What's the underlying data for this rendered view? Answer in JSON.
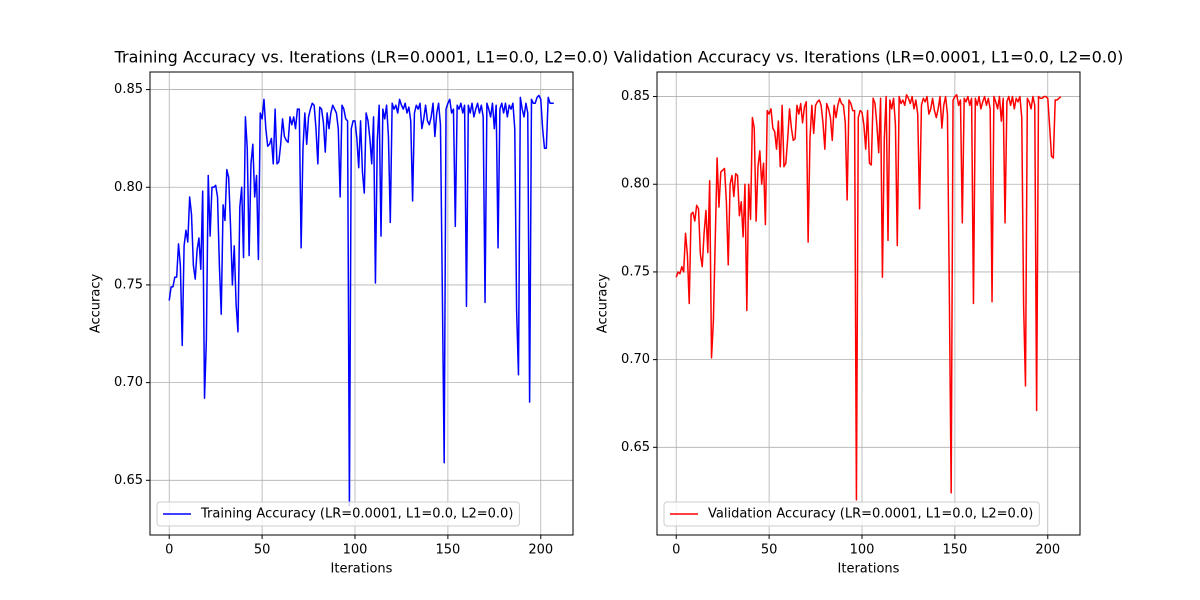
{
  "chart_data": [
    {
      "type": "line",
      "title": "Training Accuracy vs. Iterations (LR=0.0001, L1=0.0, L2=0.0)",
      "xlabel": "Iterations",
      "ylabel": "Accuracy",
      "grid": true,
      "legend": "lower left",
      "xlim": [
        -10.35,
        217.35
      ],
      "xticks": [
        0,
        50,
        100,
        150,
        200
      ],
      "ylim": [
        0.622,
        0.859
      ],
      "yticks": [
        0.65,
        {
          "value": 0.7,
          "label": "0.70"
        },
        0.75,
        {
          "value": 0.8,
          "label": "0.80"
        },
        0.85
      ],
      "x": [
        0,
        1,
        2,
        3,
        4,
        5,
        6,
        7,
        8,
        9,
        10,
        11,
        12,
        13,
        14,
        15,
        16,
        17,
        18,
        19,
        20,
        21,
        22,
        23,
        24,
        25,
        26,
        27,
        28,
        29,
        30,
        31,
        32,
        33,
        34,
        35,
        36,
        37,
        38,
        39,
        40,
        41,
        42,
        43,
        44,
        45,
        46,
        47,
        48,
        49,
        50,
        51,
        52,
        53,
        54,
        55,
        56,
        57,
        58,
        59,
        60,
        61,
        62,
        63,
        64,
        65,
        66,
        67,
        68,
        69,
        70,
        71,
        72,
        73,
        74,
        75,
        76,
        77,
        78,
        79,
        80,
        81,
        82,
        83,
        84,
        85,
        86,
        87,
        88,
        89,
        90,
        91,
        92,
        93,
        94,
        95,
        96,
        97,
        98,
        99,
        100,
        101,
        102,
        103,
        104,
        105,
        106,
        107,
        108,
        109,
        110,
        111,
        112,
        113,
        114,
        115,
        116,
        117,
        118,
        119,
        120,
        121,
        122,
        123,
        124,
        125,
        126,
        127,
        128,
        129,
        130,
        131,
        132,
        133,
        134,
        135,
        136,
        137,
        138,
        139,
        140,
        141,
        142,
        143,
        144,
        145,
        146,
        147,
        148,
        149,
        150,
        151,
        152,
        153,
        154,
        155,
        156,
        157,
        158,
        159,
        160,
        161,
        162,
        163,
        164,
        165,
        166,
        167,
        168,
        169,
        170,
        171,
        172,
        173,
        174,
        175,
        176,
        177,
        178,
        179,
        180,
        181,
        182,
        183,
        184,
        185,
        186,
        187,
        188,
        189,
        190,
        191,
        192,
        193,
        194,
        195,
        196,
        197,
        198,
        199,
        200,
        201,
        202,
        203,
        204,
        205,
        206,
        207
      ],
      "series": [
        {
          "name": "Training Accuracy (LR=0.0001, L1=0.0, L2=0.0)",
          "color": "#0000ff",
          "values": [
            0.742,
            0.749,
            0.749,
            0.754,
            0.754,
            0.771,
            0.76,
            0.719,
            0.77,
            0.778,
            0.772,
            0.795,
            0.786,
            0.76,
            0.753,
            0.768,
            0.774,
            0.758,
            0.798,
            0.692,
            0.722,
            0.806,
            0.775,
            0.8,
            0.8,
            0.801,
            0.795,
            0.76,
            0.735,
            0.791,
            0.783,
            0.809,
            0.805,
            0.78,
            0.75,
            0.77,
            0.74,
            0.726,
            0.79,
            0.8,
            0.764,
            0.836,
            0.82,
            0.765,
            0.812,
            0.822,
            0.795,
            0.806,
            0.763,
            0.838,
            0.835,
            0.845,
            0.83,
            0.821,
            0.822,
            0.825,
            0.812,
            0.84,
            0.812,
            0.813,
            0.822,
            0.835,
            0.826,
            0.824,
            0.823,
            0.836,
            0.832,
            0.836,
            0.83,
            0.84,
            0.84,
            0.769,
            0.82,
            0.838,
            0.822,
            0.836,
            0.84,
            0.843,
            0.842,
            0.83,
            0.812,
            0.841,
            0.84,
            0.833,
            0.818,
            0.838,
            0.83,
            0.838,
            0.842,
            0.84,
            0.838,
            0.83,
            0.795,
            0.842,
            0.84,
            0.835,
            0.834,
            0.637,
            0.83,
            0.834,
            0.834,
            0.825,
            0.81,
            0.834,
            0.808,
            0.797,
            0.838,
            0.834,
            0.825,
            0.812,
            0.836,
            0.751,
            0.824,
            0.842,
            0.775,
            0.84,
            0.835,
            0.842,
            0.826,
            0.782,
            0.843,
            0.84,
            0.842,
            0.838,
            0.845,
            0.842,
            0.84,
            0.843,
            0.838,
            0.841,
            0.834,
            0.793,
            0.838,
            0.842,
            0.84,
            0.843,
            0.83,
            0.835,
            0.842,
            0.834,
            0.832,
            0.836,
            0.843,
            0.826,
            0.838,
            0.843,
            0.832,
            0.748,
            0.659,
            0.84,
            0.843,
            0.845,
            0.838,
            0.84,
            0.78,
            0.842,
            0.84,
            0.843,
            0.838,
            0.842,
            0.739,
            0.842,
            0.838,
            0.843,
            0.836,
            0.84,
            0.843,
            0.838,
            0.842,
            0.836,
            0.741,
            0.843,
            0.84,
            0.836,
            0.843,
            0.83,
            0.842,
            0.769,
            0.84,
            0.843,
            0.838,
            0.843,
            0.836,
            0.842,
            0.84,
            0.843,
            0.83,
            0.737,
            0.704,
            0.846,
            0.84,
            0.836,
            0.843,
            0.838,
            0.69,
            0.845,
            0.843,
            0.843,
            0.846,
            0.847,
            0.845,
            0.83,
            0.82,
            0.82,
            0.846,
            0.843,
            0.843,
            0.843
          ]
        }
      ]
    },
    {
      "type": "line",
      "title": "Validation Accuracy vs. Iterations (LR=0.0001, L1=0.0, L2=0.0)",
      "xlabel": "Iterations",
      "ylabel": "Accuracy",
      "grid": true,
      "legend": "lower left",
      "xlim": [
        -10.35,
        217.35
      ],
      "xticks": [
        0,
        50,
        100,
        150,
        200
      ],
      "ylim": [
        0.6,
        0.864
      ],
      "yticks": [
        0.65,
        {
          "value": 0.7,
          "label": "0.70"
        },
        0.75,
        {
          "value": 0.8,
          "label": "0.80"
        },
        0.85
      ],
      "x": [
        0,
        1,
        2,
        3,
        4,
        5,
        6,
        7,
        8,
        9,
        10,
        11,
        12,
        13,
        14,
        15,
        16,
        17,
        18,
        19,
        20,
        21,
        22,
        23,
        24,
        25,
        26,
        27,
        28,
        29,
        30,
        31,
        32,
        33,
        34,
        35,
        36,
        37,
        38,
        39,
        40,
        41,
        42,
        43,
        44,
        45,
        46,
        47,
        48,
        49,
        50,
        51,
        52,
        53,
        54,
        55,
        56,
        57,
        58,
        59,
        60,
        61,
        62,
        63,
        64,
        65,
        66,
        67,
        68,
        69,
        70,
        71,
        72,
        73,
        74,
        75,
        76,
        77,
        78,
        79,
        80,
        81,
        82,
        83,
        84,
        85,
        86,
        87,
        88,
        89,
        90,
        91,
        92,
        93,
        94,
        95,
        96,
        97,
        98,
        99,
        100,
        101,
        102,
        103,
        104,
        105,
        106,
        107,
        108,
        109,
        110,
        111,
        112,
        113,
        114,
        115,
        116,
        117,
        118,
        119,
        120,
        121,
        122,
        123,
        124,
        125,
        126,
        127,
        128,
        129,
        130,
        131,
        132,
        133,
        134,
        135,
        136,
        137,
        138,
        139,
        140,
        141,
        142,
        143,
        144,
        145,
        146,
        147,
        148,
        149,
        150,
        151,
        152,
        153,
        154,
        155,
        156,
        157,
        158,
        159,
        160,
        161,
        162,
        163,
        164,
        165,
        166,
        167,
        168,
        169,
        170,
        171,
        172,
        173,
        174,
        175,
        176,
        177,
        178,
        179,
        180,
        181,
        182,
        183,
        184,
        185,
        186,
        187,
        188,
        189,
        190,
        191,
        192,
        193,
        194,
        195,
        196,
        197,
        198,
        199,
        200,
        201,
        202,
        203,
        204,
        205,
        206,
        207
      ],
      "series": [
        {
          "name": "Validation Accuracy (LR=0.0001, L1=0.0, L2=0.0)",
          "color": "#ff0000",
          "values": [
            0.747,
            0.75,
            0.749,
            0.753,
            0.75,
            0.772,
            0.76,
            0.732,
            0.783,
            0.784,
            0.779,
            0.788,
            0.786,
            0.76,
            0.753,
            0.772,
            0.785,
            0.761,
            0.802,
            0.701,
            0.722,
            0.768,
            0.815,
            0.787,
            0.807,
            0.808,
            0.809,
            0.79,
            0.754,
            0.8,
            0.805,
            0.793,
            0.806,
            0.805,
            0.782,
            0.79,
            0.77,
            0.8,
            0.728,
            0.8,
            0.78,
            0.838,
            0.832,
            0.779,
            0.81,
            0.819,
            0.8,
            0.812,
            0.777,
            0.842,
            0.84,
            0.843,
            0.832,
            0.83,
            0.82,
            0.836,
            0.81,
            0.845,
            0.81,
            0.812,
            0.826,
            0.843,
            0.832,
            0.825,
            0.826,
            0.845,
            0.84,
            0.846,
            0.835,
            0.844,
            0.847,
            0.767,
            0.826,
            0.845,
            0.829,
            0.845,
            0.847,
            0.848,
            0.845,
            0.835,
            0.82,
            0.846,
            0.843,
            0.838,
            0.825,
            0.845,
            0.838,
            0.845,
            0.849,
            0.846,
            0.845,
            0.835,
            0.791,
            0.848,
            0.846,
            0.842,
            0.842,
            0.62,
            0.838,
            0.842,
            0.841,
            0.834,
            0.82,
            0.842,
            0.812,
            0.811,
            0.849,
            0.846,
            0.834,
            0.818,
            0.849,
            0.747,
            0.826,
            0.85,
            0.768,
            0.848,
            0.843,
            0.849,
            0.834,
            0.765,
            0.85,
            0.846,
            0.848,
            0.845,
            0.851,
            0.849,
            0.846,
            0.85,
            0.843,
            0.848,
            0.84,
            0.786,
            0.845,
            0.849,
            0.847,
            0.85,
            0.84,
            0.843,
            0.849,
            0.842,
            0.838,
            0.843,
            0.85,
            0.832,
            0.845,
            0.85,
            0.84,
            0.74,
            0.624,
            0.848,
            0.85,
            0.851,
            0.845,
            0.848,
            0.778,
            0.849,
            0.847,
            0.85,
            0.845,
            0.849,
            0.732,
            0.849,
            0.845,
            0.85,
            0.843,
            0.847,
            0.85,
            0.845,
            0.849,
            0.843,
            0.733,
            0.85,
            0.847,
            0.843,
            0.85,
            0.836,
            0.849,
            0.778,
            0.847,
            0.85,
            0.845,
            0.85,
            0.843,
            0.849,
            0.847,
            0.85,
            0.838,
            0.731,
            0.685,
            0.849,
            0.847,
            0.843,
            0.85,
            0.845,
            0.671,
            0.85,
            0.849,
            0.849,
            0.85,
            0.85,
            0.849,
            0.833,
            0.816,
            0.815,
            0.848,
            0.848,
            0.849,
            0.85
          ]
        }
      ]
    }
  ]
}
